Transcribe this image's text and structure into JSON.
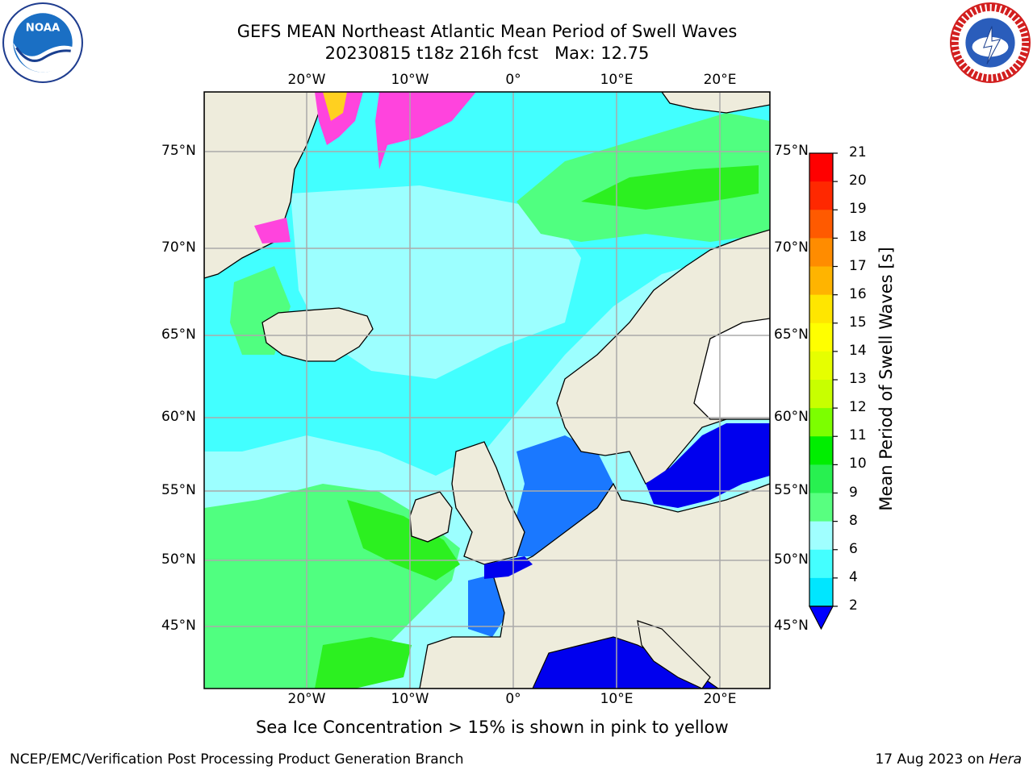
{
  "title": {
    "line1": "GEFS MEAN Northeast Atlantic Mean Period of Swell Waves",
    "line2": "20230815 t18z 216h fcst   Max: 12.75"
  },
  "logos": {
    "left": "noaa-logo",
    "right": "nws-logo",
    "left_text": "NOAA",
    "right_text": "NATIONAL WEATHER SERVICE"
  },
  "map": {
    "lon_labels": [
      "20°W",
      "10°W",
      "0°",
      "10°E",
      "20°E"
    ],
    "lat_labels": [
      "75°N",
      "70°N",
      "65°N",
      "60°N",
      "55°N",
      "50°N",
      "45°N"
    ],
    "colors": {
      "land": "#eeecdc",
      "ice_pink": "#ff44dd",
      "ice_yellow": "#ffd020",
      "swell_dark_blue": "#0000ee",
      "swell_blue": "#1a78ff",
      "swell_cyan": "#42ffff",
      "swell_light_cyan": "#9cffff",
      "swell_green": "#50ff80",
      "swell_bright_green": "#2cf020",
      "grid": "#aaaaaa"
    }
  },
  "colorbar": {
    "label": "Mean Period of Swell Waves [s]",
    "ticks": [
      "21",
      "20",
      "19",
      "18",
      "17",
      "16",
      "15",
      "14",
      "13",
      "12",
      "11",
      "10",
      "9",
      "8",
      "6",
      "4",
      "2"
    ],
    "colors": [
      "#ff0000",
      "#ff2800",
      "#ff5a00",
      "#ff8c00",
      "#ffb400",
      "#ffe600",
      "#ffff00",
      "#e6ff00",
      "#c8ff00",
      "#7cff00",
      "#00ee00",
      "#28f050",
      "#58ff80",
      "#a0ffff",
      "#44ffff",
      "#00e6ff",
      "#1a78ff",
      "#0000ff"
    ]
  },
  "caption": "Sea Ice Concentration > 15% is shown in pink to yellow",
  "footer": {
    "left": "NCEP/EMC/Verification Post Processing Product Generation Branch",
    "date": "17 Aug 2023 on ",
    "machine": "Hera"
  }
}
